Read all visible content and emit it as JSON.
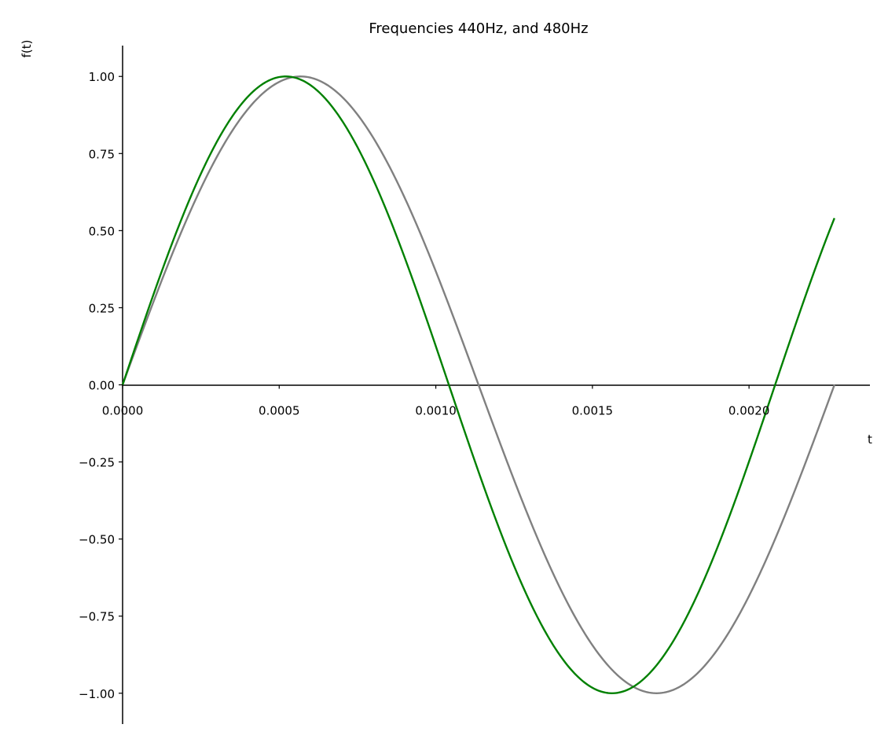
{
  "chart_data": {
    "type": "line",
    "title": "Frequencies 440Hz, and 480Hz",
    "xlabel": "t",
    "ylabel": "f(t)",
    "xlim": [
      0,
      0.002386
    ],
    "ylim": [
      -1.1,
      1.1
    ],
    "x_ticks": [
      0.0,
      0.0005,
      0.001,
      0.0015,
      0.002
    ],
    "x_tick_labels": [
      "0.0000",
      "0.0005",
      "0.0010",
      "0.0015",
      "0.0020"
    ],
    "y_ticks": [
      1.0,
      0.75,
      0.5,
      0.25,
      0.0,
      -0.25,
      -0.5,
      -0.75,
      -1.0
    ],
    "y_tick_labels": [
      "1.00",
      "0.75",
      "0.50",
      "0.25",
      "0.00",
      "−0.25",
      "−0.50",
      "−0.75",
      "−1.00"
    ],
    "grid": false,
    "series": [
      {
        "function": "sin(2*pi*440*t)",
        "frequency_hz": 440,
        "t_range": [
          0,
          0.0022727
        ],
        "color": "#808080"
      },
      {
        "function": "sin(2*pi*480*t)",
        "frequency_hz": 480,
        "t_range": [
          0,
          0.0022727
        ],
        "color": "#008000"
      }
    ]
  }
}
